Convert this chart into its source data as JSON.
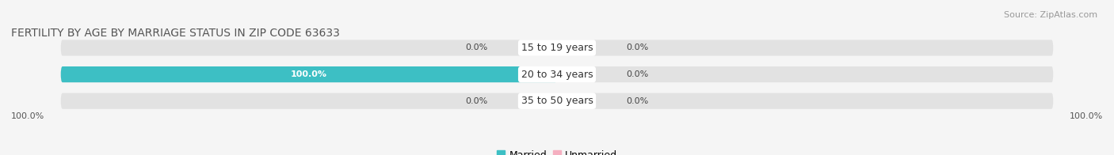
{
  "title": "FERTILITY BY AGE BY MARRIAGE STATUS IN ZIP CODE 63633",
  "source": "Source: ZipAtlas.com",
  "categories": [
    "15 to 19 years",
    "20 to 34 years",
    "35 to 50 years"
  ],
  "married_values": [
    0.0,
    100.0,
    0.0
  ],
  "unmarried_values": [
    0.0,
    0.0,
    0.0
  ],
  "married_color": "#3dbfc4",
  "unmarried_color": "#f5afc0",
  "bar_bg_color": "#e2e2e2",
  "bar_height": 0.6,
  "title_fontsize": 10,
  "source_fontsize": 8,
  "label_fontsize": 8,
  "legend_fontsize": 9,
  "category_fontsize": 9,
  "left_label_100": "100.0%",
  "right_label_100": "100.0%",
  "background_color": "#f5f5f5"
}
